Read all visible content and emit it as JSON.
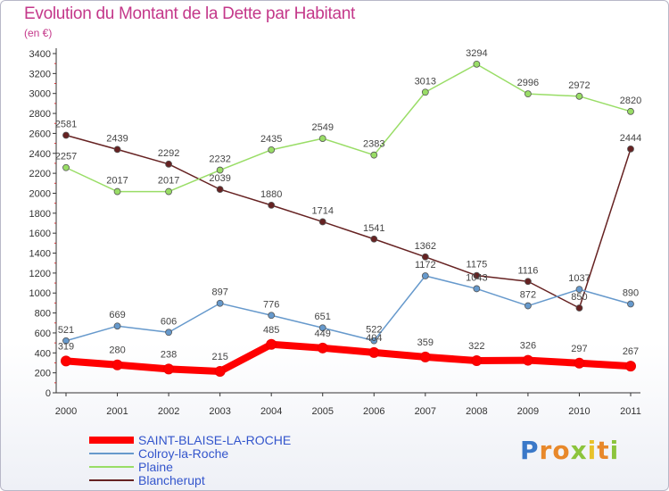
{
  "chart_data": {
    "type": "line",
    "title": "Evolution du Montant de la Dette par Habitant",
    "subtitle": "(en €)",
    "x": [
      "2000",
      "2001",
      "2002",
      "2003",
      "2004",
      "2005",
      "2006",
      "2007",
      "2008",
      "2009",
      "2010",
      "2011"
    ],
    "ylim": [
      0,
      3400
    ],
    "yticks": [
      0,
      200,
      400,
      600,
      800,
      1000,
      1200,
      1400,
      1600,
      1800,
      2000,
      2200,
      2400,
      2600,
      2800,
      3000,
      3200,
      3400
    ],
    "grid": false,
    "legend_position": "bottom-left",
    "series": [
      {
        "name": "SAINT-BLAISE-LA-ROCHE",
        "color": "#ff0000",
        "values": [
          319,
          280,
          238,
          215,
          485,
          449,
          404,
          359,
          322,
          326,
          297,
          267
        ]
      },
      {
        "name": "Colroy-la-Roche",
        "color": "#6699cc",
        "values": [
          521,
          669,
          606,
          897,
          776,
          651,
          522,
          1172,
          1043,
          872,
          1037,
          890
        ]
      },
      {
        "name": "Plaine",
        "color": "#99dd66",
        "values": [
          2257,
          2017,
          2017,
          2232,
          2435,
          2549,
          2383,
          3013,
          3294,
          2996,
          2972,
          2820
        ]
      },
      {
        "name": "Blancherupt",
        "color": "#662222",
        "values": [
          2581,
          2439,
          2292,
          2039,
          1880,
          1714,
          1541,
          1362,
          1175,
          1116,
          850,
          2444
        ]
      }
    ]
  },
  "logo": {
    "letters": [
      "P",
      "r",
      "o",
      "x",
      "i",
      "t",
      "i"
    ],
    "colors": [
      "#3a78c8",
      "#e8882a",
      "#e8882a",
      "#8cc43c",
      "#e8c22a",
      "#e8882a",
      "#8cc43c"
    ]
  }
}
